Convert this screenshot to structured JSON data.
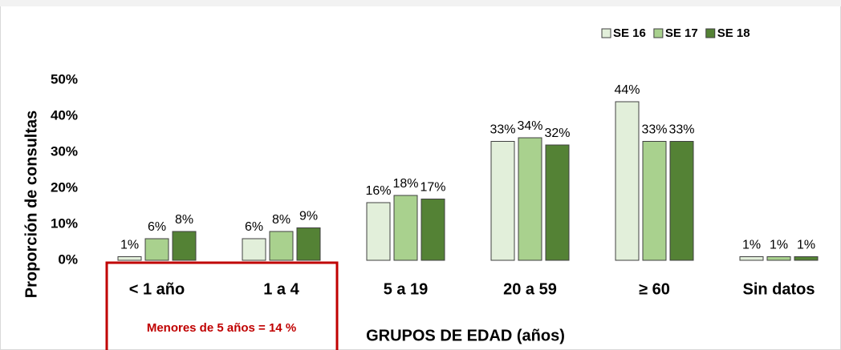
{
  "chart_data": {
    "type": "bar",
    "x_label": "GRUPOS DE EDAD (años)",
    "y_label": "Proporción  de consultas",
    "annotation": "Menores de 5 años = 14 %",
    "categories": [
      "< 1 año",
      "1 a 4",
      "5 a 19",
      "20 a 59",
      "≥ 60",
      "Sin datos"
    ],
    "series": [
      {
        "name": "SE 16",
        "color": "#e2efda",
        "values": [
          1,
          6,
          16,
          33,
          44,
          1
        ],
        "value_labels": [
          "1%",
          "6%",
          "16%",
          "33%",
          "44%",
          "1%"
        ]
      },
      {
        "name": "SE 17",
        "color": "#a9d18e",
        "values": [
          6,
          8,
          18,
          34,
          33,
          1
        ],
        "value_labels": [
          "6%",
          "8%",
          "18%",
          "34%",
          "33%",
          "1%"
        ]
      },
      {
        "name": "SE 18",
        "color": "#548235",
        "values": [
          8,
          9,
          17,
          32,
          33,
          1
        ],
        "value_labels": [
          "8%",
          "9%",
          "17%",
          "32%",
          "33%",
          "1%"
        ]
      }
    ],
    "ylim": [
      0,
      50
    ],
    "yticks": [
      {
        "value": 0,
        "label": "0%"
      },
      {
        "value": 10,
        "label": "10%"
      },
      {
        "value": 20,
        "label": "20%"
      },
      {
        "value": 30,
        "label": "30%"
      },
      {
        "value": 40,
        "label": "40%"
      },
      {
        "value": 50,
        "label": "50%"
      }
    ],
    "legend": "top-right",
    "grid": false
  }
}
